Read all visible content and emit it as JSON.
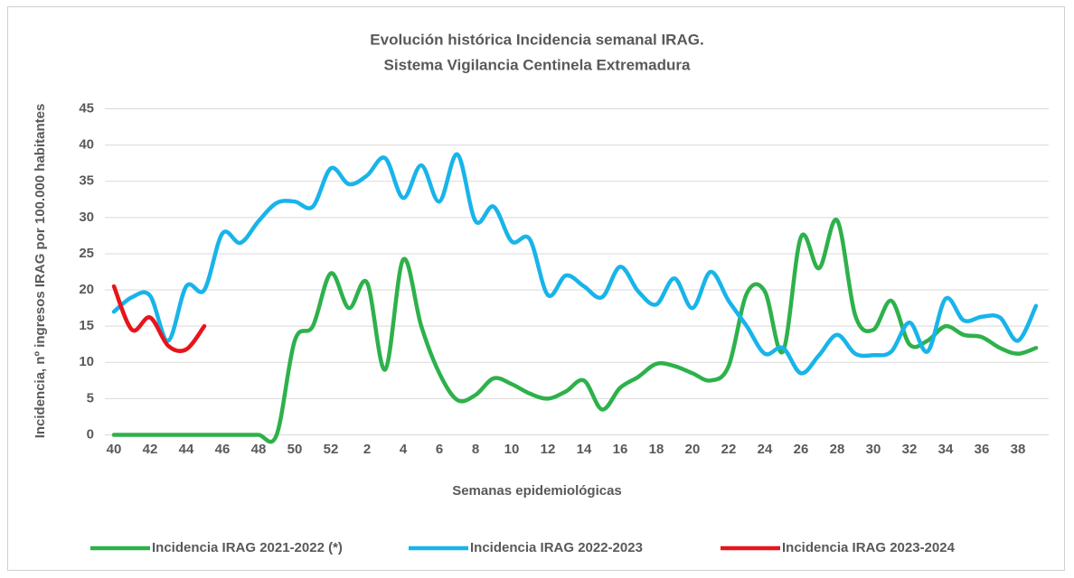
{
  "chart_data": {
    "type": "line",
    "title": [
      "Evolución histórica Incidencia semanal IRAG.",
      "Sistema Vigilancia Centinela Extremadura"
    ],
    "x_label": "Semanas epidemiológicas",
    "y_label": "Incidencia, nº ingresos IRAG por 100.000 habitantes",
    "categories": [
      "40",
      null,
      "42",
      null,
      "44",
      null,
      "46",
      null,
      "48",
      null,
      "50",
      null,
      "52",
      null,
      "2",
      null,
      "4",
      null,
      "6",
      null,
      "8",
      null,
      "10",
      null,
      "12",
      null,
      "14",
      null,
      "16",
      null,
      "18",
      null,
      "20",
      null,
      "22",
      null,
      "24",
      null,
      "26",
      null,
      "28",
      null,
      "30",
      null,
      "32",
      null,
      "34",
      null,
      "36",
      null,
      "38",
      null
    ],
    "ylim": [
      0,
      45
    ],
    "yticks": [
      0,
      5,
      10,
      15,
      20,
      25,
      30,
      35,
      40,
      45
    ],
    "grid": true,
    "legend": "bottom",
    "series": [
      {
        "name": "Incidencia IRAG 2021-2022 (*)",
        "color": "#2eb14b",
        "values": [
          0,
          0,
          0,
          0,
          0,
          0,
          0,
          0,
          0,
          0,
          13,
          15,
          22.3,
          17.5,
          21,
          9,
          24.2,
          15,
          8.5,
          4.8,
          5.5,
          7.8,
          7,
          5.7,
          5,
          6,
          7.5,
          3.5,
          6.5,
          8,
          9.8,
          9.5,
          8.5,
          7.5,
          9.5,
          19.5,
          19.8,
          11.5,
          27.3,
          23,
          29.6,
          16.5,
          14.5,
          18.5,
          12.5,
          13,
          15,
          13.8,
          13.5,
          12,
          11.2,
          12
        ]
      },
      {
        "name": "Incidencia IRAG 2022-2023",
        "color": "#18b4ea",
        "values": [
          17,
          19,
          19.2,
          13,
          20.5,
          20,
          27.8,
          26.5,
          29.5,
          32,
          32.2,
          31.5,
          36.8,
          34.6,
          35.8,
          38.2,
          32.7,
          37.2,
          32.2,
          38.7,
          29.5,
          31.5,
          26.7,
          27,
          19.3,
          22,
          20.5,
          19,
          23.2,
          19.8,
          18,
          21.6,
          17.5,
          22.5,
          18.5,
          15,
          11.2,
          12,
          8.5,
          11,
          13.8,
          11.2,
          11,
          11.5,
          15.5,
          11.5,
          18.8,
          15.8,
          16.3,
          16.2,
          13,
          17.8
        ]
      },
      {
        "name": "Incidencia IRAG 2023-2024",
        "color": "#e8141b",
        "values": [
          20.5,
          14.5,
          16.2,
          12.3,
          11.8,
          15,
          null,
          null,
          null,
          null,
          null,
          null,
          null,
          null,
          null,
          null,
          null,
          null,
          null,
          null,
          null,
          null,
          null,
          null,
          null,
          null,
          null,
          null,
          null,
          null,
          null,
          null,
          null,
          null,
          null,
          null,
          null,
          null,
          null,
          null,
          null,
          null,
          null,
          null,
          null,
          null,
          null,
          null,
          null,
          null,
          null,
          null
        ]
      }
    ]
  }
}
